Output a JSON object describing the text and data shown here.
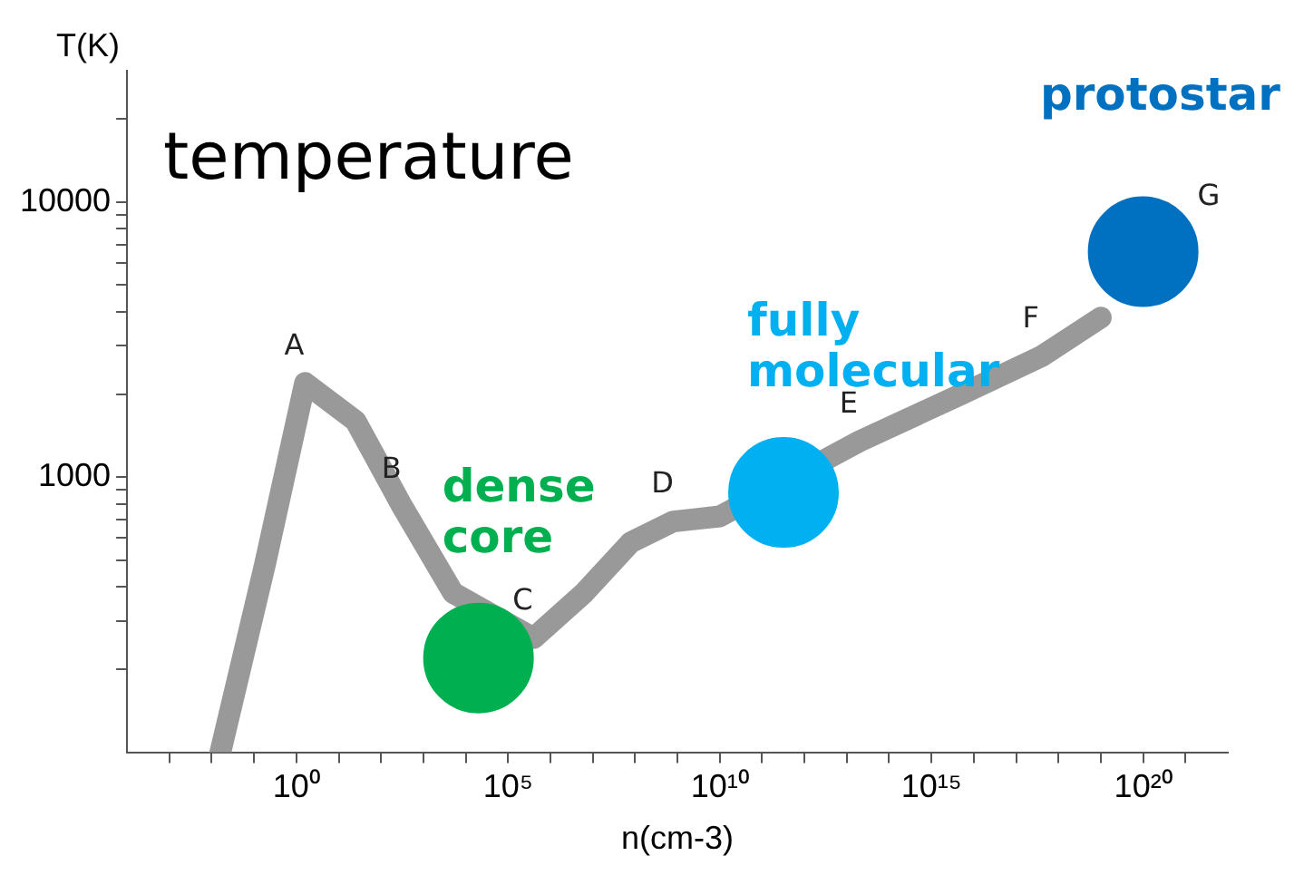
{
  "chart_data": {
    "type": "line",
    "xlabel": "n(cm-3)",
    "ylabel": "T(K)",
    "log": "xy",
    "grid": false,
    "legend": false,
    "xlim": [
      0.0001,
      1e+22
    ],
    "ylim": [
      100,
      30000
    ],
    "xticks": [
      {
        "value": 0.001,
        "label": null
      },
      {
        "value": 0.01,
        "label": null
      },
      {
        "value": 0.1,
        "label": null
      },
      {
        "value": 1,
        "label": "10⁰"
      },
      {
        "value": 10.0,
        "label": null
      },
      {
        "value": 100.0,
        "label": null
      },
      {
        "value": 1000.0,
        "label": null
      },
      {
        "value": 10000.0,
        "label": null
      },
      {
        "value": 100000.0,
        "label": "10⁵"
      },
      {
        "value": 1000000.0,
        "label": null
      },
      {
        "value": 10000000.0,
        "label": null
      },
      {
        "value": 100000000.0,
        "label": null
      },
      {
        "value": 1000000000.0,
        "label": null
      },
      {
        "value": 10000000000.0,
        "label": "10¹⁰"
      },
      {
        "value": 100000000000.0,
        "label": null
      },
      {
        "value": 1000000000000.0,
        "label": null
      },
      {
        "value": 10000000000000.0,
        "label": null
      },
      {
        "value": 100000000000000.0,
        "label": null
      },
      {
        "value": 1000000000000000.0,
        "label": "10¹⁵"
      },
      {
        "value": 1e+16,
        "label": null
      },
      {
        "value": 1e+17,
        "label": null
      },
      {
        "value": 1e+18,
        "label": null
      },
      {
        "value": 1e+19,
        "label": null
      },
      {
        "value": 1e+20,
        "label": "10²⁰"
      },
      {
        "value": 1e+21,
        "label": null
      }
    ],
    "yticks": [
      {
        "value": 200,
        "label": null
      },
      {
        "value": 300,
        "label": null
      },
      {
        "value": 400,
        "label": null
      },
      {
        "value": 500,
        "label": null
      },
      {
        "value": 600,
        "label": null
      },
      {
        "value": 700,
        "label": null
      },
      {
        "value": 800,
        "label": null
      },
      {
        "value": 900,
        "label": null
      },
      1000,
      {
        "value": 2000,
        "label": null
      },
      {
        "value": 3000,
        "label": null
      },
      {
        "value": 4000,
        "label": null
      },
      {
        "value": 5000,
        "label": null
      },
      {
        "value": 6000,
        "label": null
      },
      {
        "value": 7000,
        "label": null
      },
      {
        "value": 8000,
        "label": null
      },
      {
        "value": 9000,
        "label": null
      },
      10000,
      {
        "value": 20000,
        "label": null
      }
    ],
    "series": [
      {
        "color": "#999999",
        "x": [
          0.016,
          0.18,
          1.6,
          25.0,
          320.0,
          5000.0,
          400000.0,
          6300000.0,
          80000000.0,
          800000000.0,
          10000000000.0,
          20000000000000.0,
          5000000000000000.0,
          4e+17,
          1e+19
        ],
        "values": [
          100,
          480,
          2200,
          1600,
          780,
          380,
          260,
          380,
          580,
          690,
          720,
          1350,
          2000,
          2750,
          3800
        ]
      },
      {
        "type": "scatter",
        "name": "dense core",
        "color": "#00b050",
        "x": [
          20000.0
        ],
        "values": [
          220
        ]
      },
      {
        "type": "scatter",
        "name": "fully molecular",
        "color": "#00b0f0",
        "x": [
          320000000000.0
        ],
        "values": [
          880
        ]
      },
      {
        "type": "scatter",
        "name": "protostar",
        "color": "#0070c0",
        "x": [
          1e+20
        ],
        "values": [
          6600
        ]
      }
    ],
    "annotations": [
      "temperature",
      {
        "text": "A",
        "x": 1.6,
        "y": 2200
      },
      {
        "text": "B",
        "x": 320.0,
        "y": 780
      },
      {
        "text": "C",
        "x": 400000.0,
        "y": 260
      },
      {
        "text": "D",
        "x": 800000000.0,
        "y": 690
      },
      {
        "text": "E",
        "x": 20000000000000.0,
        "y": 1350
      },
      {
        "text": "F",
        "x": 4e+17,
        "y": 2750
      },
      {
        "text": "G",
        "x": 1e+20,
        "y": 6600
      }
    ]
  }
}
